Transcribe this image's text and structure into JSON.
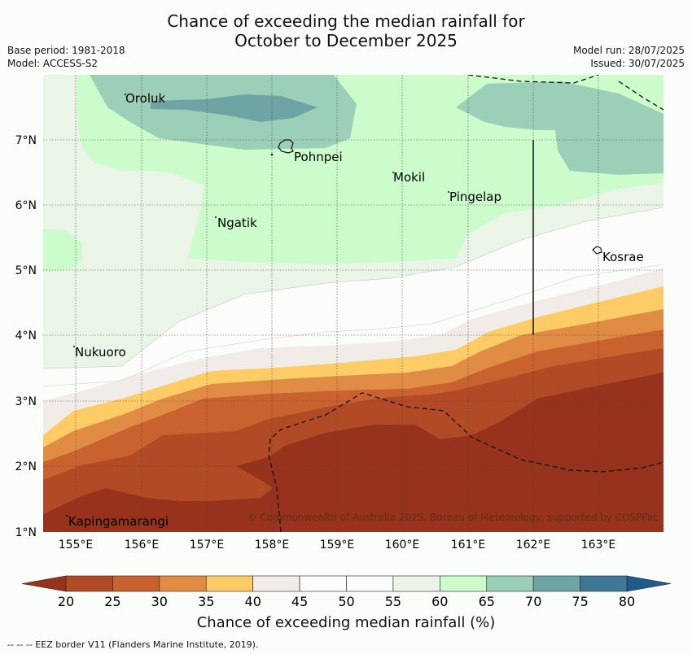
{
  "title": {
    "line1": "Chance of exceeding the median rainfall for",
    "line2": "October to December 2025"
  },
  "meta": {
    "base_period": "Base period: 1981-2018",
    "model": "Model: ACCESS-S2",
    "model_run": "Model run: 28/07/2025",
    "issued": "Issued: 30/07/2025"
  },
  "axes": {
    "lon_ticks": [
      "155°E",
      "156°E",
      "157°E",
      "158°E",
      "159°E",
      "160°E",
      "161°E",
      "162°E",
      "163°E"
    ],
    "lat_ticks": [
      "1°N",
      "2°N",
      "3°N",
      "4°N",
      "5°N",
      "6°N",
      "7°N"
    ]
  },
  "places": {
    "oroluk": "Oroluk",
    "pohnpei": "Pohnpei",
    "mokil": "Mokil",
    "pingelap": "Pingelap",
    "ngatik": "Ngatik",
    "kosrae": "Kosrae",
    "nukuoro": "Nukuoro",
    "kapingamarangi": "Kapingamarangi"
  },
  "copyright": "© Commonwealth of Australia 2025, Bureau of Meteorology, supported by COSPPac",
  "colorbar": {
    "ticks": [
      "20",
      "25",
      "30",
      "35",
      "40",
      "45",
      "50",
      "55",
      "60",
      "65",
      "70",
      "75",
      "80"
    ],
    "label": "Chance of exceeding median rainfall (%)",
    "colors": [
      "#b24a26",
      "#c9622f",
      "#e08c45",
      "#fdcc66",
      "#f2ece8",
      "#fcfdfb",
      "#fbfdfa",
      "#eaf5e8",
      "#ccfccc",
      "#9ccfb8",
      "#6ea4a6",
      "#3e7896"
    ],
    "under_color": "#97331d",
    "over_color": "#1f5a8a"
  },
  "footnote": "--  --  -- EEZ border V11 (Flanders Marine Institute, 2019)."
}
